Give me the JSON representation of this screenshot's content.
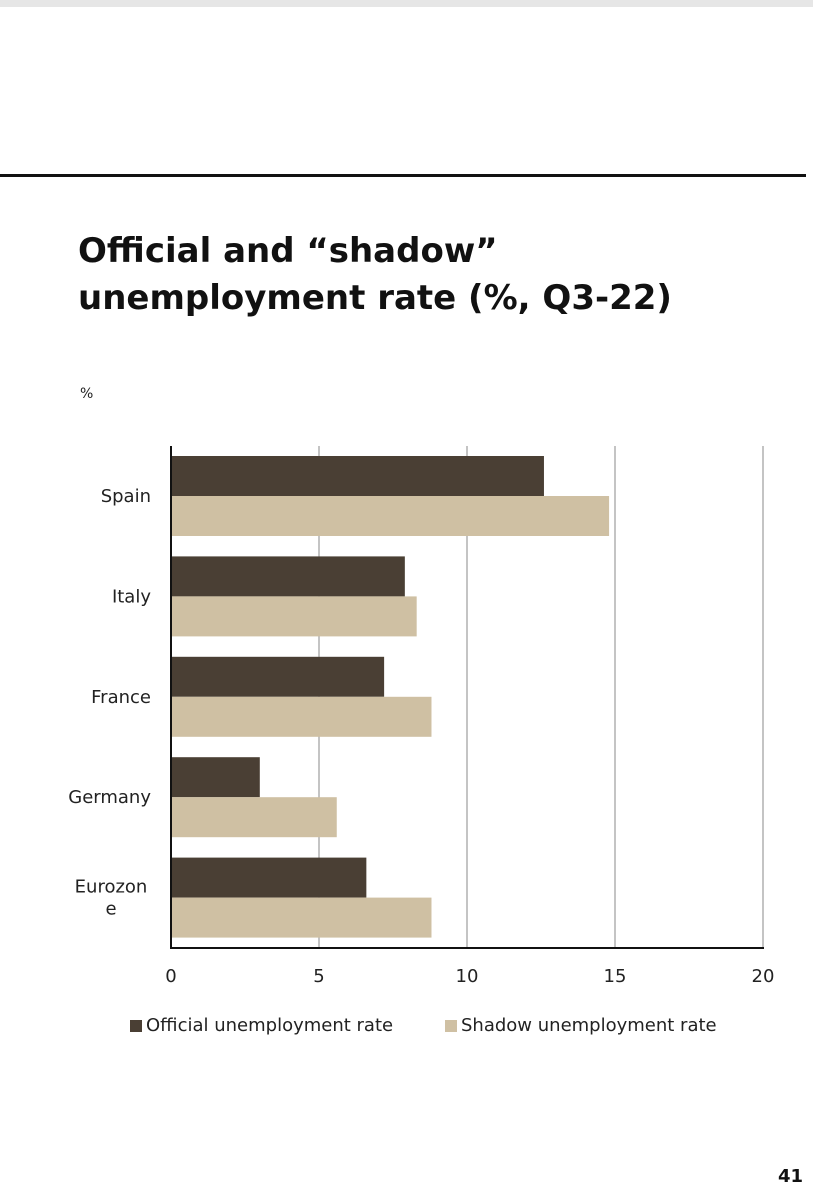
{
  "page": {
    "title": "Official and “shadow” unemployment rate (%, Q3-22)",
    "unit_label": "%",
    "page_number": "41"
  },
  "chart_data": {
    "type": "bar",
    "orientation": "horizontal",
    "title": "Official and “shadow” unemployment rate (%, Q3-22)",
    "ylabel": "%",
    "categories": [
      "Spain",
      "Italy",
      "France",
      "Germany",
      "Eurozone"
    ],
    "category_labels": [
      [
        "Spain"
      ],
      [
        "Italy"
      ],
      [
        "France"
      ],
      [
        "Germany"
      ],
      [
        "Eurozon",
        "e"
      ]
    ],
    "series": [
      {
        "name": "Official unemployment rate",
        "color": "#4a3f34",
        "values": [
          12.6,
          7.9,
          7.2,
          3.0,
          6.6
        ]
      },
      {
        "name": "Shadow unemployment rate",
        "color": "#cfc0a3",
        "values": [
          14.8,
          8.3,
          8.8,
          5.6,
          8.8
        ]
      }
    ],
    "xlim": [
      0,
      20
    ],
    "xticks": [
      0,
      5,
      10,
      15,
      20
    ],
    "grid": true,
    "legend": "bottom"
  }
}
